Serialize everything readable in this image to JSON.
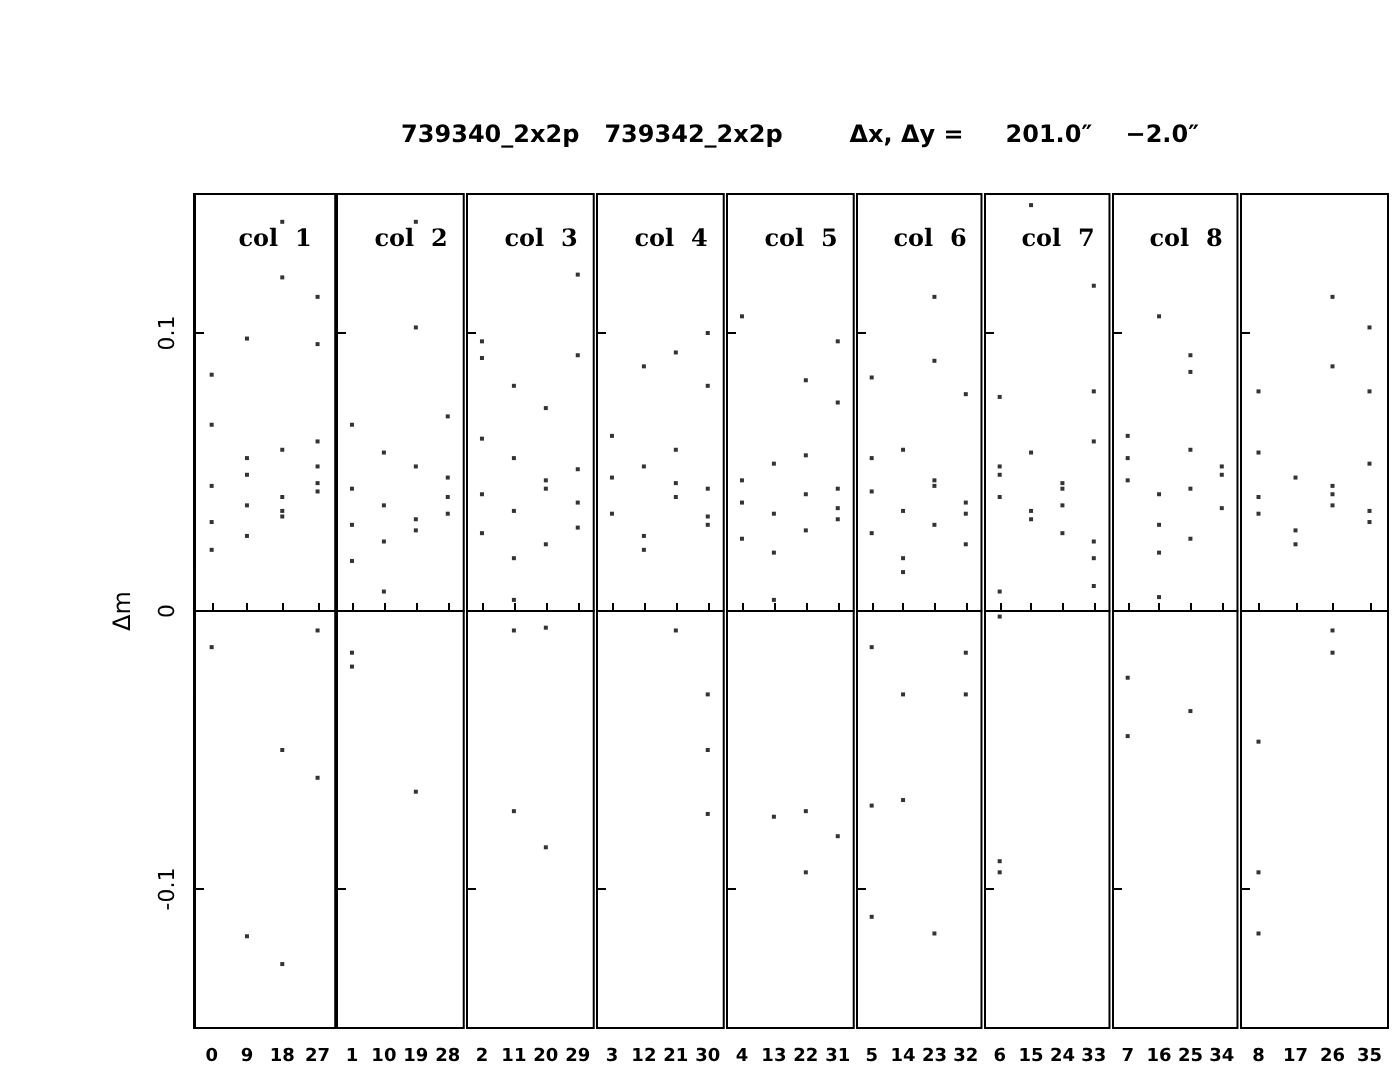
{
  "chart_data": [
    {
      "type": "scatter",
      "title": "col  1",
      "ylabel": "Δm",
      "annotations": [
        "739340_2x2p   739342_2x2p        Δx, Δy =     201.0″    −2.0″"
      ],
      "color": "#000000",
      "marker": "square",
      "grid": false,
      "ylim": [
        -0.15,
        0.15
      ],
      "yticks": [
        -0.1,
        0,
        0.1
      ],
      "ref_lines": [
        {
          "axis": "y",
          "value": 0
        }
      ],
      "categories": [
        "0",
        "9",
        "18",
        "27"
      ],
      "series": [
        {
          "values": [
            0.085,
            0.098,
            0.14,
            0.113
          ]
        },
        {
          "values": [
            0.067,
            -0.117,
            0.12,
            0.096
          ]
        },
        {
          "values": [
            -0.013,
            0.055,
            -0.05,
            -0.007
          ]
        },
        {
          "values": [
            0.045,
            0.038,
            -0.127,
            -0.06
          ]
        },
        {
          "values": [
            0.032,
            0.027,
            0.041,
            0.046
          ]
        },
        {
          "values": [
            0.022,
            0.049,
            0.058,
            0.061
          ]
        },
        {
          "values": [
            null,
            null,
            0.034,
            0.052
          ]
        },
        {
          "values": [
            null,
            null,
            0.036,
            0.043
          ]
        }
      ]
    },
    {
      "type": "scatter",
      "title": "col  2",
      "tick_labels": "x",
      "color": "#000000",
      "marker": "square",
      "grid": false,
      "ylim": [
        -0.15,
        0.15
      ],
      "yticks": [
        -0.1,
        0,
        0.1
      ],
      "ref_lines": [
        {
          "axis": "y",
          "value": 0
        }
      ],
      "categories": [
        "1",
        "10",
        "19",
        "28"
      ],
      "series": [
        {
          "values": [
            -0.015,
            0.007,
            0.102,
            0.07
          ]
        },
        {
          "values": [
            -0.02,
            0.025,
            -0.065,
            0.041
          ]
        },
        {
          "values": [
            0.067,
            0.038,
            0.14,
            0.035
          ]
        },
        {
          "values": [
            0.031,
            0.057,
            0.052,
            0.048
          ]
        },
        {
          "values": [
            0.018,
            null,
            0.029,
            null
          ]
        },
        {
          "values": [
            0.044,
            null,
            0.033,
            null
          ]
        }
      ]
    },
    {
      "type": "scatter",
      "title": "col  3",
      "tick_labels": "x",
      "color": "#000000",
      "marker": "square",
      "grid": false,
      "ylim": [
        -0.15,
        0.15
      ],
      "yticks": [
        -0.1,
        0,
        0.1
      ],
      "ref_lines": [
        {
          "axis": "y",
          "value": 0
        }
      ],
      "categories": [
        "2",
        "11",
        "20",
        "29"
      ],
      "series": [
        {
          "values": [
            0.097,
            0.081,
            0.073,
            0.121
          ]
        },
        {
          "values": [
            0.091,
            -0.007,
            -0.006,
            0.092
          ]
        },
        {
          "values": [
            0.042,
            -0.072,
            -0.085,
            0.039
          ]
        },
        {
          "values": [
            0.028,
            0.004,
            0.047,
            0.051
          ]
        },
        {
          "values": [
            0.062,
            0.055,
            0.024,
            0.03
          ]
        },
        {
          "values": [
            null,
            0.036,
            0.044,
            null
          ]
        },
        {
          "values": [
            null,
            0.019,
            null,
            null
          ]
        }
      ]
    },
    {
      "type": "scatter",
      "title": "col  4",
      "tick_labels": "x",
      "color": "#000000",
      "marker": "square",
      "grid": false,
      "ylim": [
        -0.15,
        0.15
      ],
      "yticks": [
        -0.1,
        0,
        0.1
      ],
      "ref_lines": [
        {
          "axis": "y",
          "value": 0
        }
      ],
      "categories": [
        "3",
        "12",
        "21",
        "30"
      ],
      "series": [
        {
          "values": [
            0.048,
            0.088,
            0.093,
            0.1
          ]
        },
        {
          "values": [
            0.063,
            0.027,
            -0.007,
            0.081
          ]
        },
        {
          "values": [
            0.035,
            0.052,
            0.041,
            -0.05
          ]
        },
        {
          "values": [
            null,
            0.022,
            0.058,
            -0.073
          ]
        },
        {
          "values": [
            null,
            null,
            0.046,
            -0.03
          ]
        },
        {
          "values": [
            null,
            null,
            null,
            0.031
          ]
        },
        {
          "values": [
            null,
            null,
            null,
            0.044
          ]
        },
        {
          "values": [
            null,
            null,
            null,
            0.034
          ]
        }
      ]
    },
    {
      "type": "scatter",
      "title": "col  5",
      "tick_labels": "x",
      "color": "#000000",
      "marker": "square",
      "grid": false,
      "ylim": [
        -0.15,
        0.15
      ],
      "yticks": [
        -0.1,
        0,
        0.1
      ],
      "ref_lines": [
        {
          "axis": "y",
          "value": 0
        }
      ],
      "categories": [
        "4",
        "13",
        "22",
        "31"
      ],
      "series": [
        {
          "values": [
            0.106,
            -0.074,
            0.083,
            0.097
          ]
        },
        {
          "values": [
            0.039,
            0.004,
            -0.072,
            0.075
          ]
        },
        {
          "values": [
            0.047,
            0.053,
            -0.094,
            -0.081
          ]
        },
        {
          "values": [
            0.026,
            0.035,
            0.042,
            0.037
          ]
        },
        {
          "values": [
            null,
            0.021,
            0.029,
            0.044
          ]
        },
        {
          "values": [
            null,
            null,
            0.056,
            0.033
          ]
        }
      ]
    },
    {
      "type": "scatter",
      "title": "col  6",
      "tick_labels": "x",
      "color": "#000000",
      "marker": "square",
      "grid": false,
      "ylim": [
        -0.15,
        0.15
      ],
      "yticks": [
        -0.1,
        0,
        0.1
      ],
      "ref_lines": [
        {
          "axis": "y",
          "value": 0
        }
      ],
      "categories": [
        "5",
        "14",
        "23",
        "32"
      ],
      "series": [
        {
          "values": [
            0.084,
            -0.03,
            0.113,
            0.078
          ]
        },
        {
          "values": [
            -0.013,
            -0.068,
            0.09,
            -0.015
          ]
        },
        {
          "values": [
            -0.07,
            0.014,
            -0.116,
            -0.03
          ]
        },
        {
          "values": [
            -0.11,
            0.036,
            0.045,
            0.039
          ]
        },
        {
          "values": [
            0.043,
            0.058,
            0.031,
            0.024
          ]
        },
        {
          "values": [
            0.028,
            0.019,
            0.047,
            0.035
          ]
        },
        {
          "values": [
            0.055,
            null,
            null,
            null
          ]
        }
      ]
    },
    {
      "type": "scatter",
      "title": "col  7",
      "tick_labels": "x",
      "color": "#000000",
      "marker": "square",
      "grid": false,
      "ylim": [
        -0.15,
        0.15
      ],
      "yticks": [
        -0.1,
        0,
        0.1
      ],
      "ref_lines": [
        {
          "axis": "y",
          "value": 0
        }
      ],
      "categories": [
        "6",
        "15",
        "24",
        "33"
      ],
      "series": [
        {
          "values": [
            0.077,
            0.146,
            0.028,
            0.117
          ]
        },
        {
          "values": [
            0.007,
            0.033,
            0.046,
            0.079
          ]
        },
        {
          "values": [
            -0.09,
            0.057,
            0.038,
            0.009
          ]
        },
        {
          "values": [
            -0.094,
            0.036,
            0.044,
            0.061
          ]
        },
        {
          "values": [
            -0.002,
            null,
            null,
            0.025
          ]
        },
        {
          "values": [
            0.052,
            null,
            null,
            0.019
          ]
        },
        {
          "values": [
            0.041,
            null,
            null,
            null
          ]
        },
        {
          "values": [
            0.049,
            null,
            null,
            null
          ]
        }
      ]
    },
    {
      "type": "scatter",
      "title": "col  8",
      "tick_labels": "x",
      "color": "#000000",
      "marker": "square",
      "grid": false,
      "ylim": [
        -0.15,
        0.15
      ],
      "yticks": [
        -0.1,
        0,
        0.1
      ],
      "ref_lines": [
        {
          "axis": "y",
          "value": 0
        }
      ],
      "categories": [
        "7",
        "16",
        "25",
        "34"
      ],
      "series": [
        {
          "values": [
            -0.024,
            0.106,
            0.092,
            0.037
          ]
        },
        {
          "values": [
            -0.045,
            0.005,
            0.086,
            0.049
          ]
        },
        {
          "values": [
            0.047,
            0.031,
            -0.036,
            0.052
          ]
        },
        {
          "values": [
            0.063,
            0.042,
            0.026,
            null
          ]
        },
        {
          "values": [
            0.055,
            0.021,
            0.058,
            null
          ]
        },
        {
          "values": [
            null,
            null,
            0.044,
            null
          ]
        }
      ]
    },
    {
      "type": "scatter",
      "tick_labels": "x",
      "color": "#000000",
      "marker": "square",
      "grid": false,
      "ylim": [
        -0.15,
        0.15
      ],
      "yticks": [
        -0.1,
        0,
        0.1
      ],
      "ref_lines": [
        {
          "axis": "y",
          "value": 0
        }
      ],
      "categories": [
        "8",
        "17",
        "26",
        "35"
      ],
      "series": [
        {
          "values": [
            0.079,
            0.048,
            0.113,
            0.102
          ]
        },
        {
          "values": [
            -0.047,
            0.024,
            0.088,
            0.079
          ]
        },
        {
          "values": [
            -0.094,
            0.029,
            -0.007,
            0.053
          ]
        },
        {
          "values": [
            -0.116,
            null,
            -0.015,
            0.036
          ]
        },
        {
          "values": [
            0.041,
            null,
            0.045,
            0.032
          ]
        },
        {
          "values": [
            0.057,
            null,
            0.038,
            null
          ]
        },
        {
          "values": [
            0.035,
            null,
            0.042,
            null
          ]
        }
      ]
    }
  ]
}
